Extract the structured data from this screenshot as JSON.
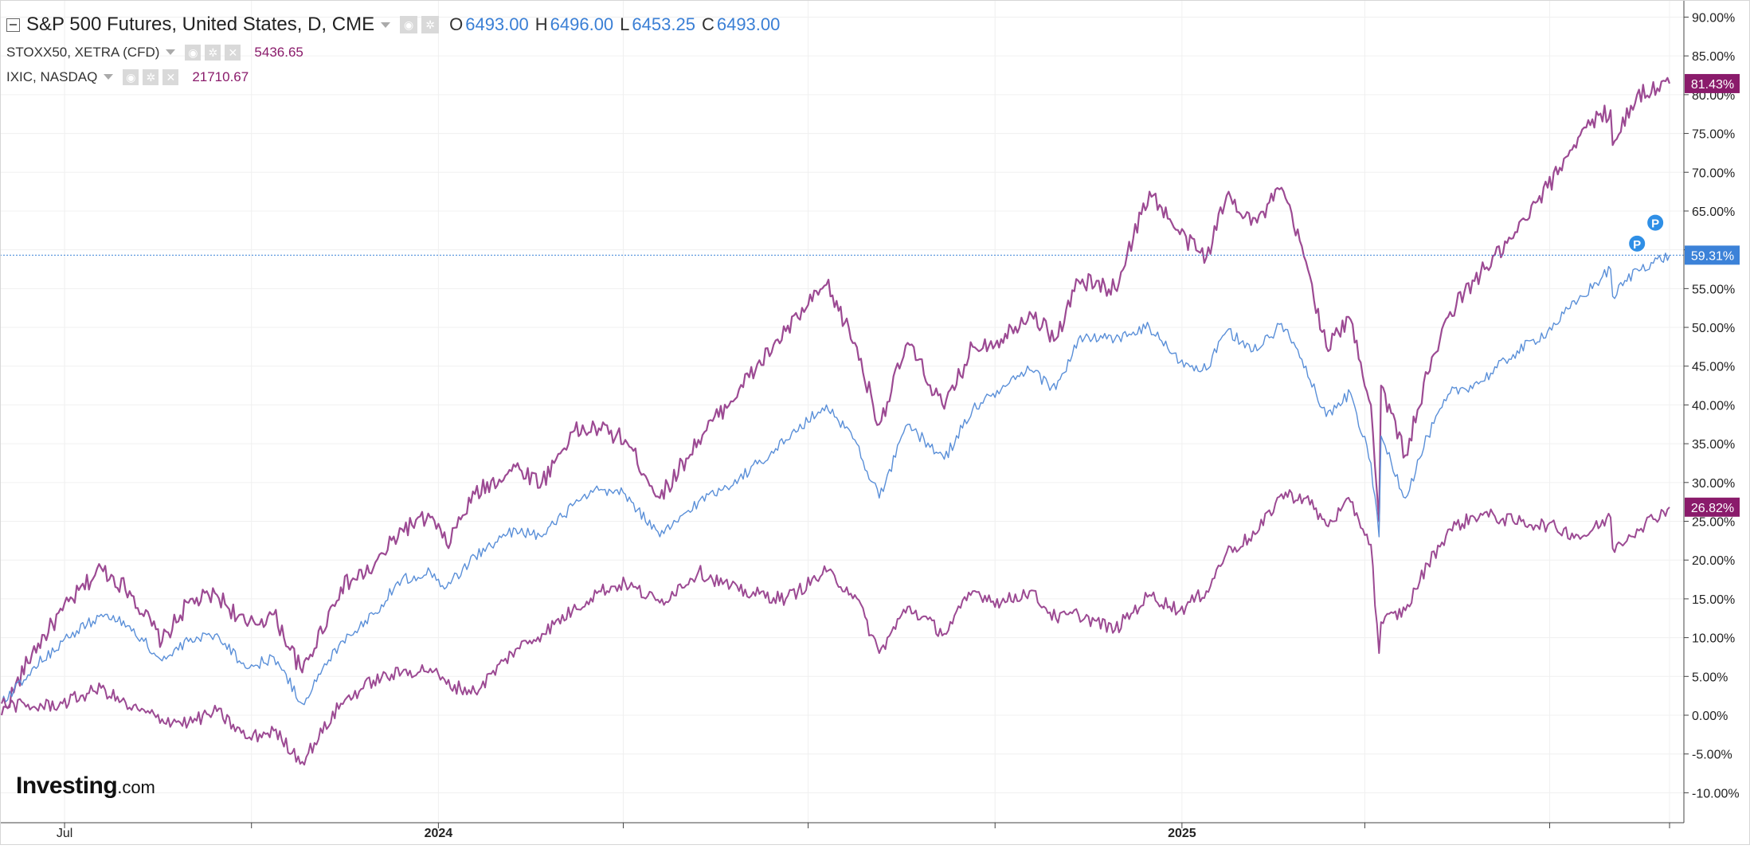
{
  "legend": {
    "main": {
      "title": "S&P 500 Futures, United States, D, CME",
      "o_label": "O",
      "o_value": "6493.00",
      "h_label": "H",
      "h_value": "6496.00",
      "l_label": "L",
      "l_value": "6453.25",
      "c_label": "C",
      "c_value": "6493.00"
    },
    "series2": {
      "name": "STOXX50, XETRA (CFD)",
      "value": "5436.65"
    },
    "series3": {
      "name": "IXIC, NASDAQ",
      "value": "21710.67"
    }
  },
  "brand": {
    "logo_text": "Investing",
    "logo_suffix": ".com"
  },
  "colors": {
    "spx": "#5a8fd8",
    "stoxx": "#9c4a93",
    "ixic": "#9c4a93",
    "price_label": "#8a1b6b",
    "spx_label": "#3c82d8"
  },
  "chart_data": {
    "type": "line",
    "y_unit": "percent change",
    "ylim": [
      -11.5,
      92
    ],
    "y_ticks": [
      "90.00%",
      "85.00%",
      "80.00%",
      "75.00%",
      "70.00%",
      "65.00%",
      "60.00%",
      "55.00%",
      "50.00%",
      "45.00%",
      "40.00%",
      "35.00%",
      "30.00%",
      "25.00%",
      "20.00%",
      "15.00%",
      "10.00%",
      "5.00%",
      "0.00%",
      "-5.00%",
      "-10.00%"
    ],
    "x_range": [
      "2023-05-31",
      "2025-08-29"
    ],
    "x_tick_labels": [
      {
        "date": "2023-07-01",
        "label": "Jul"
      },
      {
        "date": "2024-01-01",
        "label": "2024"
      },
      {
        "date": "2025-01-01",
        "label": "2025"
      }
    ],
    "x_minor_ticks": [
      "2023-10-01",
      "2024-04-01",
      "2024-07-01",
      "2024-10-01",
      "2025-04-01",
      "2025-07-01",
      "2025-08-29"
    ],
    "grid": true,
    "last_value_labels": [
      {
        "series": "IXIC, NASDAQ",
        "text": "81.43%"
      },
      {
        "series": "S&P 500 Futures",
        "text": "59.31%"
      },
      {
        "series": "STOXX50, XETRA (CFD)",
        "text": "26.82%"
      }
    ],
    "markers": [
      {
        "date": "2025-08-22",
        "value": 63.5,
        "text": "P"
      },
      {
        "date": "2025-08-13",
        "value": 60.8,
        "text": "P"
      }
    ],
    "series": [
      {
        "name": "IXIC, NASDAQ",
        "color": "#9c4a93",
        "points": [
          [
            "2023-05-31",
            0.0
          ],
          [
            "2023-06-15",
            8.0
          ],
          [
            "2023-06-30",
            13.5
          ],
          [
            "2023-07-19",
            19.0
          ],
          [
            "2023-08-02",
            16.0
          ],
          [
            "2023-08-18",
            9.5
          ],
          [
            "2023-08-31",
            14.5
          ],
          [
            "2023-09-14",
            15.5
          ],
          [
            "2023-09-29",
            11.5
          ],
          [
            "2023-10-12",
            13.0
          ],
          [
            "2023-10-26",
            5.5
          ],
          [
            "2023-11-14",
            16.5
          ],
          [
            "2023-11-30",
            19.0
          ],
          [
            "2023-12-14",
            24.0
          ],
          [
            "2023-12-28",
            25.5
          ],
          [
            "2024-01-05",
            22.0
          ],
          [
            "2024-01-19",
            28.5
          ],
          [
            "2024-02-08",
            32.0
          ],
          [
            "2024-02-21",
            30.0
          ],
          [
            "2024-03-07",
            36.5
          ],
          [
            "2024-03-20",
            37.0
          ],
          [
            "2024-04-02",
            35.5
          ],
          [
            "2024-04-19",
            28.0
          ],
          [
            "2024-05-08",
            35.5
          ],
          [
            "2024-05-28",
            42.0
          ],
          [
            "2024-06-20",
            49.5
          ],
          [
            "2024-07-10",
            55.5
          ],
          [
            "2024-07-24",
            48.0
          ],
          [
            "2024-08-05",
            37.5
          ],
          [
            "2024-08-19",
            48.0
          ],
          [
            "2024-09-06",
            39.5
          ],
          [
            "2024-09-20",
            47.5
          ],
          [
            "2024-10-04",
            48.5
          ],
          [
            "2024-10-18",
            52.0
          ],
          [
            "2024-10-31",
            48.5
          ],
          [
            "2024-11-11",
            56.0
          ],
          [
            "2024-11-29",
            55.0
          ],
          [
            "2024-12-16",
            67.5
          ],
          [
            "2024-12-31",
            62.0
          ],
          [
            "2025-01-13",
            59.0
          ],
          [
            "2025-01-23",
            67.0
          ],
          [
            "2025-02-07",
            63.5
          ],
          [
            "2025-02-19",
            68.0
          ],
          [
            "2025-03-03",
            58.5
          ],
          [
            "2025-03-13",
            47.5
          ],
          [
            "2025-03-25",
            51.0
          ],
          [
            "2025-04-04",
            40.0
          ],
          [
            "2025-04-08",
            25.0
          ],
          [
            "2025-04-09",
            42.5
          ],
          [
            "2025-04-21",
            33.5
          ],
          [
            "2025-05-02",
            44.0
          ],
          [
            "2025-05-13",
            52.0
          ],
          [
            "2025-05-28",
            57.0
          ],
          [
            "2025-06-13",
            61.5
          ],
          [
            "2025-06-30",
            68.0
          ],
          [
            "2025-07-17",
            75.5
          ],
          [
            "2025-07-31",
            78.0
          ],
          [
            "2025-08-01",
            73.5
          ],
          [
            "2025-08-13",
            80.0
          ],
          [
            "2025-08-29",
            81.43
          ]
        ]
      },
      {
        "name": "S&P 500 Futures, United States, D, CME",
        "color": "#5a8fd8",
        "points": [
          [
            "2023-05-31",
            1.5
          ],
          [
            "2023-06-15",
            6.0
          ],
          [
            "2023-06-30",
            9.5
          ],
          [
            "2023-07-19",
            13.0
          ],
          [
            "2023-08-02",
            11.5
          ],
          [
            "2023-08-18",
            7.0
          ],
          [
            "2023-08-31",
            9.5
          ],
          [
            "2023-09-14",
            10.5
          ],
          [
            "2023-09-29",
            6.0
          ],
          [
            "2023-10-12",
            7.5
          ],
          [
            "2023-10-26",
            1.5
          ],
          [
            "2023-11-14",
            9.5
          ],
          [
            "2023-11-30",
            13.0
          ],
          [
            "2023-12-14",
            17.5
          ],
          [
            "2023-12-28",
            18.5
          ],
          [
            "2024-01-05",
            16.5
          ],
          [
            "2024-01-19",
            20.5
          ],
          [
            "2024-02-08",
            24.0
          ],
          [
            "2024-02-21",
            23.0
          ],
          [
            "2024-03-07",
            27.0
          ],
          [
            "2024-03-20",
            29.0
          ],
          [
            "2024-04-02",
            28.5
          ],
          [
            "2024-04-19",
            23.0
          ],
          [
            "2024-05-08",
            27.5
          ],
          [
            "2024-05-28",
            30.5
          ],
          [
            "2024-06-20",
            35.5
          ],
          [
            "2024-07-10",
            40.0
          ],
          [
            "2024-07-24",
            35.5
          ],
          [
            "2024-08-05",
            28.0
          ],
          [
            "2024-08-19",
            37.5
          ],
          [
            "2024-09-06",
            33.0
          ],
          [
            "2024-09-20",
            39.5
          ],
          [
            "2024-10-04",
            42.0
          ],
          [
            "2024-10-18",
            44.5
          ],
          [
            "2024-10-31",
            42.0
          ],
          [
            "2024-11-11",
            48.5
          ],
          [
            "2024-11-29",
            48.5
          ],
          [
            "2024-12-16",
            50.0
          ],
          [
            "2024-12-31",
            45.5
          ],
          [
            "2025-01-13",
            44.5
          ],
          [
            "2025-01-23",
            49.5
          ],
          [
            "2025-02-07",
            47.0
          ],
          [
            "2025-02-19",
            50.5
          ],
          [
            "2025-03-03",
            45.0
          ],
          [
            "2025-03-13",
            38.5
          ],
          [
            "2025-03-25",
            41.5
          ],
          [
            "2025-04-04",
            32.5
          ],
          [
            "2025-04-08",
            23.0
          ],
          [
            "2025-04-09",
            36.0
          ],
          [
            "2025-04-21",
            28.0
          ],
          [
            "2025-05-02",
            36.0
          ],
          [
            "2025-05-13",
            41.5
          ],
          [
            "2025-05-28",
            43.0
          ],
          [
            "2025-06-13",
            46.5
          ],
          [
            "2025-06-30",
            49.5
          ],
          [
            "2025-07-17",
            54.0
          ],
          [
            "2025-07-31",
            57.5
          ],
          [
            "2025-08-01",
            54.0
          ],
          [
            "2025-08-13",
            57.5
          ],
          [
            "2025-08-29",
            59.31
          ]
        ]
      },
      {
        "name": "STOXX50, XETRA (CFD)",
        "color": "#9c4a93",
        "points": [
          [
            "2023-05-31",
            1.5
          ],
          [
            "2023-06-15",
            1.0
          ],
          [
            "2023-06-30",
            1.5
          ],
          [
            "2023-07-19",
            3.5
          ],
          [
            "2023-08-02",
            1.0
          ],
          [
            "2023-08-18",
            -0.5
          ],
          [
            "2023-08-31",
            -1.0
          ],
          [
            "2023-09-14",
            0.5
          ],
          [
            "2023-09-29",
            -3.0
          ],
          [
            "2023-10-12",
            -2.0
          ],
          [
            "2023-10-26",
            -6.0
          ],
          [
            "2023-11-14",
            1.5
          ],
          [
            "2023-11-30",
            4.5
          ],
          [
            "2023-12-14",
            5.5
          ],
          [
            "2023-12-28",
            6.0
          ],
          [
            "2024-01-05",
            4.0
          ],
          [
            "2024-01-19",
            3.0
          ],
          [
            "2024-02-08",
            8.5
          ],
          [
            "2024-02-21",
            10.5
          ],
          [
            "2024-03-07",
            13.5
          ],
          [
            "2024-03-20",
            16.0
          ],
          [
            "2024-04-02",
            17.0
          ],
          [
            "2024-04-19",
            14.5
          ],
          [
            "2024-05-08",
            18.5
          ],
          [
            "2024-05-28",
            16.0
          ],
          [
            "2024-06-20",
            15.0
          ],
          [
            "2024-07-10",
            18.5
          ],
          [
            "2024-07-24",
            15.5
          ],
          [
            "2024-08-05",
            8.0
          ],
          [
            "2024-08-19",
            14.0
          ],
          [
            "2024-09-06",
            10.5
          ],
          [
            "2024-09-20",
            16.0
          ],
          [
            "2024-10-04",
            14.5
          ],
          [
            "2024-10-18",
            16.0
          ],
          [
            "2024-10-31",
            12.5
          ],
          [
            "2024-11-11",
            13.0
          ],
          [
            "2024-11-29",
            11.0
          ],
          [
            "2024-12-16",
            15.5
          ],
          [
            "2024-12-31",
            13.5
          ],
          [
            "2025-01-13",
            16.0
          ],
          [
            "2025-01-23",
            21.0
          ],
          [
            "2025-02-07",
            23.5
          ],
          [
            "2025-02-19",
            28.5
          ],
          [
            "2025-03-03",
            28.0
          ],
          [
            "2025-03-13",
            24.5
          ],
          [
            "2025-03-25",
            27.5
          ],
          [
            "2025-04-04",
            22.0
          ],
          [
            "2025-04-08",
            8.0
          ],
          [
            "2025-04-09",
            12.0
          ],
          [
            "2025-04-21",
            13.5
          ],
          [
            "2025-05-02",
            19.5
          ],
          [
            "2025-05-13",
            24.0
          ],
          [
            "2025-05-28",
            26.0
          ],
          [
            "2025-06-13",
            25.0
          ],
          [
            "2025-06-30",
            24.5
          ],
          [
            "2025-07-17",
            23.0
          ],
          [
            "2025-07-31",
            25.5
          ],
          [
            "2025-08-01",
            21.5
          ],
          [
            "2025-08-13",
            24.0
          ],
          [
            "2025-08-29",
            26.82
          ]
        ]
      }
    ]
  }
}
